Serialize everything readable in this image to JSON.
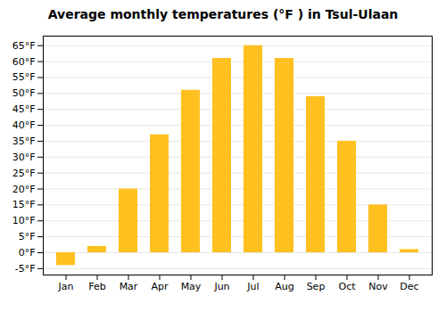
{
  "chart_data": {
    "type": "bar",
    "title": "Average monthly temperatures (°F ) in Tsul-Ulaan",
    "categories": [
      "Jan",
      "Feb",
      "Mar",
      "Apr",
      "May",
      "Jun",
      "Jul",
      "Aug",
      "Sep",
      "Oct",
      "Nov",
      "Dec"
    ],
    "values": [
      -4,
      2,
      20,
      37,
      51,
      61,
      65,
      61,
      49,
      35,
      15,
      1
    ],
    "color": "#FFC020",
    "ylim": [
      -7,
      68
    ],
    "yticks": [
      {
        "value": -5,
        "label": "-5°F"
      },
      {
        "value": 0,
        "label": "0°F"
      },
      {
        "value": 5,
        "label": "5°F"
      },
      {
        "value": 10,
        "label": "10°F"
      },
      {
        "value": 15,
        "label": "15°F"
      },
      {
        "value": 20,
        "label": "20°F"
      },
      {
        "value": 25,
        "label": "25°F"
      },
      {
        "value": 30,
        "label": "30°F"
      },
      {
        "value": 35,
        "label": "35°F"
      },
      {
        "value": 40,
        "label": "40°F"
      },
      {
        "value": 45,
        "label": "45°F"
      },
      {
        "value": 50,
        "label": "50°F"
      },
      {
        "value": 55,
        "label": "55°F"
      },
      {
        "value": 60,
        "label": "60°F"
      },
      {
        "value": 65,
        "label": "65°F"
      }
    ],
    "grid": true
  }
}
